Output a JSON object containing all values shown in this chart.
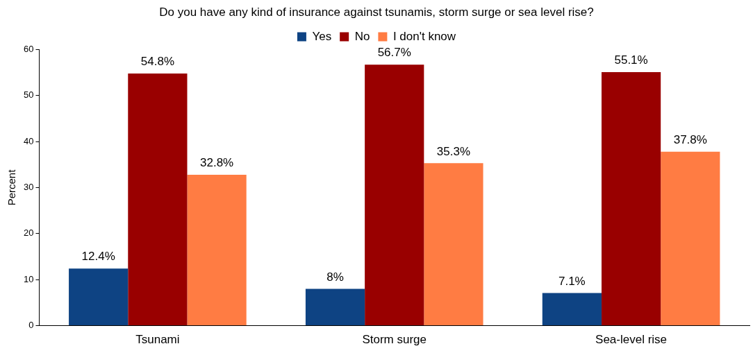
{
  "chart_data": {
    "type": "bar",
    "title": "Do you have any kind of insurance against tsunamis, storm surge or sea level rise?",
    "ylabel": "Percent",
    "categories": [
      "Tsunami",
      "Storm surge",
      "Sea-level rise"
    ],
    "series": [
      {
        "name": "Yes",
        "color": "#0e4383",
        "values": [
          12.4,
          8,
          7.1
        ],
        "value_labels": [
          "12.4%",
          "8%",
          "7.1%"
        ]
      },
      {
        "name": "No",
        "color": "#990000",
        "values": [
          54.8,
          56.7,
          55.1
        ],
        "value_labels": [
          "54.8%",
          "56.7%",
          "55.1%"
        ]
      },
      {
        "name": "I don't know",
        "color": "#ff7c43",
        "values": [
          32.8,
          35.3,
          37.8
        ],
        "value_labels": [
          "32.8%",
          "35.3%",
          "37.8%"
        ]
      }
    ],
    "ylim": [
      0,
      60
    ],
    "yticks": [
      0,
      10,
      20,
      30,
      40,
      50,
      60
    ],
    "grid": false,
    "legend": "top"
  }
}
